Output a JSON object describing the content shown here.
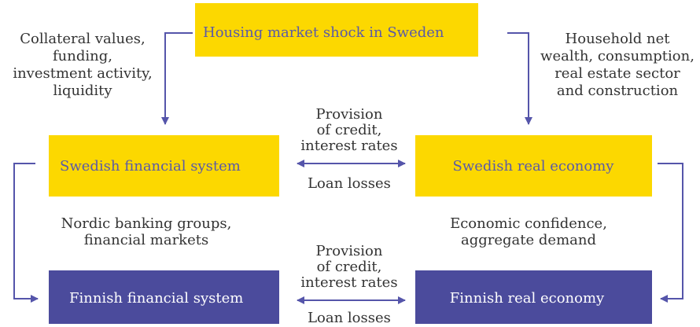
{
  "nodes": [
    {
      "label": "Housing market shock in Sweden"
    },
    {
      "label": "Swedish financial system"
    },
    {
      "label": "Swedish real economy"
    },
    {
      "label": "Finnish financial system"
    },
    {
      "label": "Finnish real economy"
    }
  ],
  "edge_labels": [
    {
      "lines": [
        "Collateral values,",
        "funding,",
        "investment activity,",
        "liquidity"
      ]
    },
    {
      "lines": [
        "Household net",
        "wealth, consumption,",
        "real estate sector",
        "and construction"
      ]
    },
    {
      "lines": [
        "Provision",
        "of credit,",
        "interest rates"
      ]
    },
    {
      "lines": [
        "Loan losses"
      ]
    },
    {
      "lines": [
        "Nordic banking groups,",
        "financial markets"
      ]
    },
    {
      "lines": [
        "Economic confidence,",
        "aggregate demand"
      ]
    },
    {
      "lines": [
        "Provision",
        "of credit,",
        "interest rates"
      ]
    },
    {
      "lines": [
        "Loan losses"
      ]
    }
  ]
}
